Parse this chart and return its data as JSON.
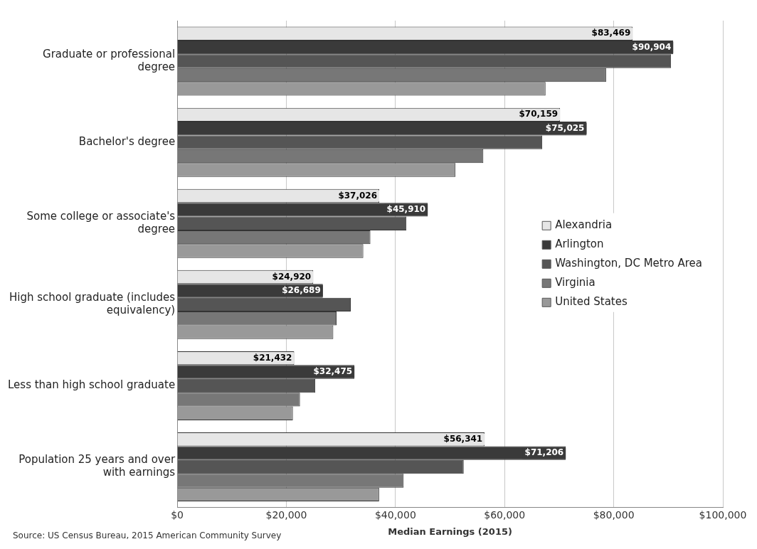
{
  "chart_data": {
    "type": "bar",
    "orientation": "horizontal",
    "xlabel": "Median Earnings (2015)",
    "annotations": [
      "Source: US Census Bureau, 2015 American Community Survey"
    ],
    "categories": [
      "Graduate or professional degree",
      "Bachelor's degree",
      "Some college or associate's degree",
      "High school graduate (includes equivalency)",
      "Less than high school graduate",
      "Population 25 years and over with earnings"
    ],
    "series": [
      {
        "name": "Alexandria",
        "color": "#e6e6e6",
        "values": [
          83469,
          70159,
          37026,
          24920,
          21432,
          56341
        ],
        "value_labels": [
          "$83,469",
          "$70,159",
          "$37,026",
          "$24,920",
          "$21,432",
          "$56,341"
        ]
      },
      {
        "name": "Arlington",
        "color": "#3a3a3a",
        "values": [
          90904,
          75025,
          45910,
          26689,
          32475,
          71206
        ],
        "value_labels": [
          "$90,904",
          "$75,025",
          "$45,910",
          "$26,689",
          "$32,475",
          "$71,206"
        ]
      },
      {
        "name": "Washington, DC Metro Area",
        "color": "#555555",
        "values": [
          90500,
          66900,
          42000,
          31800,
          25300,
          52500
        ]
      },
      {
        "name": "Virginia",
        "color": "#777777",
        "values": [
          78600,
          56100,
          35400,
          29200,
          22500,
          41500
        ]
      },
      {
        "name": "United States",
        "color": "#999999",
        "values": [
          67500,
          51000,
          34100,
          28600,
          21200,
          37000
        ]
      }
    ],
    "xlim": [
      0,
      100000
    ],
    "xticks": [
      {
        "value": 0,
        "label": "$0"
      },
      {
        "value": 20000,
        "label": "$20,000"
      },
      {
        "value": 40000,
        "label": "$40,000"
      },
      {
        "value": 60000,
        "label": "$60,000"
      },
      {
        "value": 80000,
        "label": "$80,000"
      },
      {
        "value": 100000,
        "label": "$100,000"
      }
    ],
    "grid": "x",
    "legend": "right"
  }
}
